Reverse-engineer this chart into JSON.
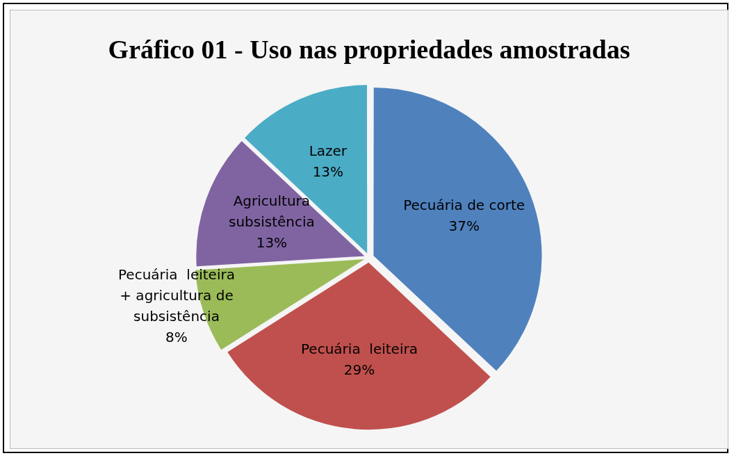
{
  "chart_data": {
    "type": "pie",
    "title": "Gráfico 01 - Uso nas propriedades amostradas",
    "categories": [
      "Pecuária de corte",
      "Pecuária  leiteira",
      "Pecuária  leiteira + agricultura de subsistência",
      "Agricultura subsistência",
      "Lazer"
    ],
    "values": [
      37,
      29,
      8,
      13,
      13
    ],
    "value_labels": [
      "37%",
      "29%",
      "8%",
      "13%",
      "13%"
    ],
    "colors": [
      "#4f81bd",
      "#c0504d",
      "#9bbb59",
      "#8064a2",
      "#4bacc6"
    ],
    "legend": false
  }
}
